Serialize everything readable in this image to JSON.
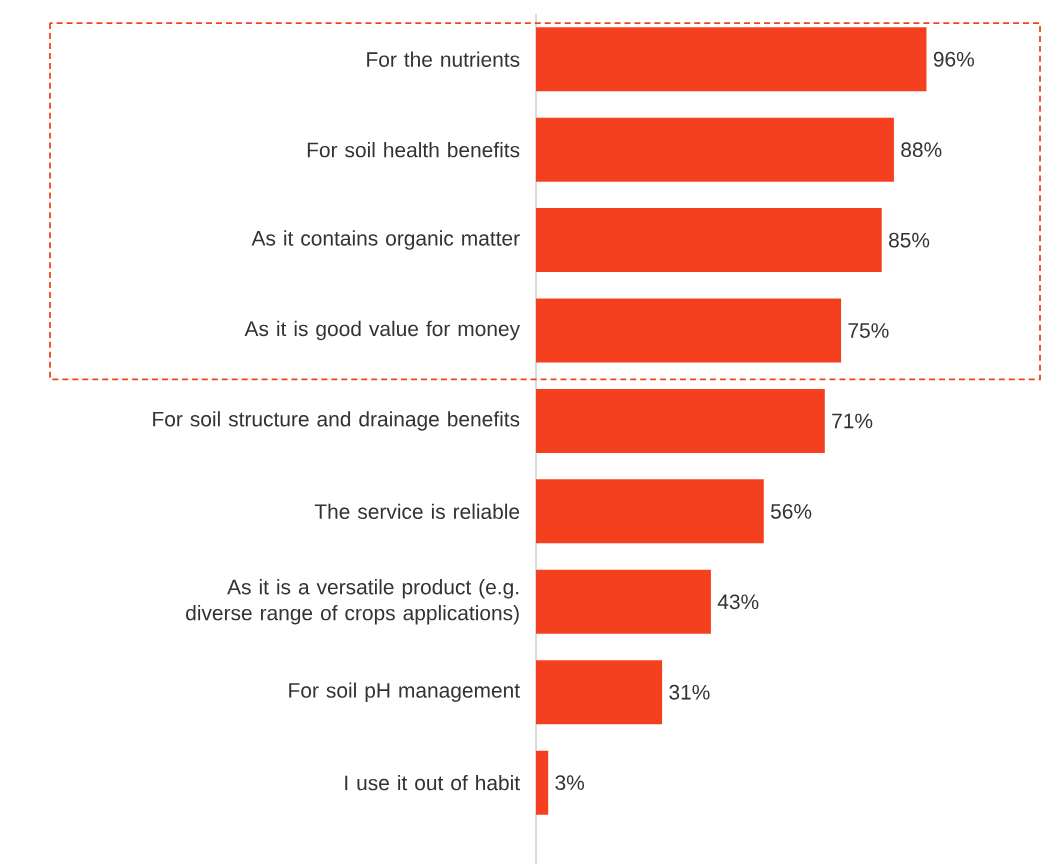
{
  "chart_data": {
    "type": "bar",
    "orientation": "horizontal",
    "categories": [
      "For the nutrients",
      "For soil health benefits",
      "As it contains organic matter",
      "As it is good value for money",
      "For soil structure and drainage benefits",
      "The service is reliable",
      "As it is a versatile product (e.g. diverse range of crops applications)",
      "For soil pH management",
      "I use it out of habit"
    ],
    "values": [
      96,
      88,
      85,
      75,
      71,
      56,
      43,
      31,
      3
    ],
    "value_labels": [
      "96%",
      "88%",
      "85%",
      "75%",
      "71%",
      "56%",
      "43%",
      "31%",
      "3%"
    ],
    "color": "#f4401f"
  }
}
